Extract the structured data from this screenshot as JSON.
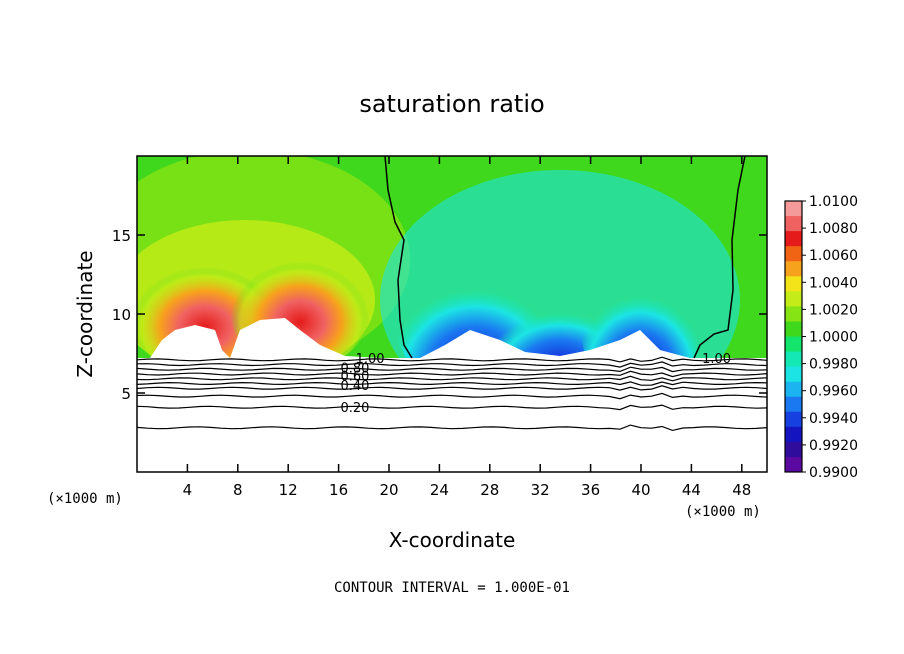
{
  "chart_data": {
    "type": "heatmap",
    "title": "saturation ratio",
    "xlabel": "X-coordinate",
    "ylabel": "Z-coordinate",
    "x_unit_label": "(×1000 m)",
    "x_unit_label_right": "(×1000 m)",
    "xlim": [
      0,
      50
    ],
    "ylim": [
      0,
      20
    ],
    "xticks": [
      4,
      8,
      12,
      16,
      20,
      24,
      28,
      32,
      36,
      40,
      44,
      48
    ],
    "yticks": [
      5,
      10,
      15
    ],
    "footer": "CONTOUR INTERVAL = 1.000E-01",
    "colorbar": {
      "levels": [
        "1.0100",
        "1.0080",
        "1.0060",
        "1.0040",
        "1.0020",
        "1.0000",
        "0.9980",
        "0.9960",
        "0.9940",
        "0.9920",
        "0.9900"
      ],
      "colors": [
        "#f49a9a",
        "#f06262",
        "#e51a1a",
        "#f06414",
        "#f7a21c",
        "#f2e418",
        "#c4ec18",
        "#86e414",
        "#40d81c",
        "#12e46c",
        "#14e8b4",
        "#1ce4e4",
        "#1cb4f0",
        "#1a78f0",
        "#1640e0",
        "#1414c0",
        "#300c9c",
        "#5a0aa0"
      ]
    },
    "contour_labels": [
      {
        "text": "1.00",
        "x": 18.5,
        "y": 7.2
      },
      {
        "text": "0.80",
        "x": 17.3,
        "y": 6.6
      },
      {
        "text": "0.60",
        "x": 17.3,
        "y": 6.1
      },
      {
        "text": "0.40",
        "x": 17.3,
        "y": 5.5
      },
      {
        "text": "0.20",
        "x": 17.3,
        "y": 4.1
      },
      {
        "text": "1.00",
        "x": 46.0,
        "y": 7.2
      }
    ],
    "contour_levels_below_cloud": [
      {
        "level": 1.0,
        "z": 7.1
      },
      {
        "level": 0.9,
        "z": 6.8
      },
      {
        "level": 0.8,
        "z": 6.5
      },
      {
        "level": 0.7,
        "z": 6.2
      },
      {
        "level": 0.6,
        "z": 5.9
      },
      {
        "level": 0.5,
        "z": 5.6
      },
      {
        "level": 0.4,
        "z": 5.3
      },
      {
        "level": 0.3,
        "z": 4.8
      },
      {
        "level": 0.2,
        "z": 4.1
      },
      {
        "level": 0.1,
        "z": 2.8
      }
    ]
  }
}
